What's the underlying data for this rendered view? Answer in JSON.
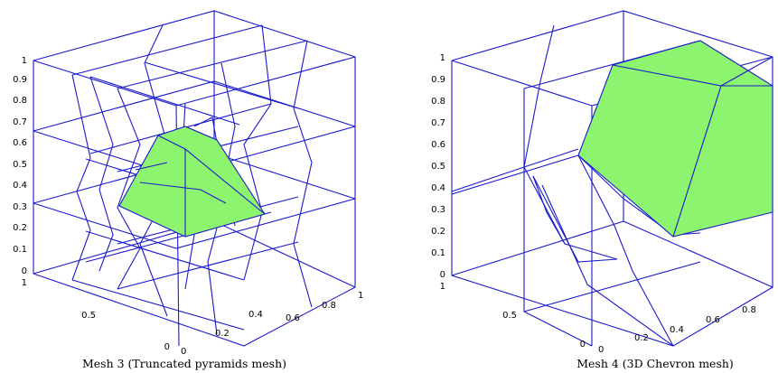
{
  "figures": [
    {
      "caption": "Mesh 3 (Truncated pyramids mesh)",
      "z_ticks": [
        "0",
        "0.1",
        "0.2",
        "0.3",
        "0.4",
        "0.5",
        "0.6",
        "0.7",
        "0.8",
        "0.9",
        "1"
      ],
      "y_ticks": [
        "0",
        "0.5",
        "1"
      ],
      "x_ticks": [
        "0",
        "0.2",
        "0.4",
        "0.6",
        "0.8",
        "1"
      ],
      "face_color": "#8cf46e",
      "edge_color": "#1a1acc"
    },
    {
      "caption": "Mesh 4 (3D Chevron mesh)",
      "z_ticks": [
        "0",
        "0.1",
        "0.2",
        "0.3",
        "0.4",
        "0.5",
        "0.6",
        "0.7",
        "0.8",
        "0.9",
        "1"
      ],
      "y_ticks": [
        "0",
        "0.5",
        "1"
      ],
      "x_ticks": [
        "0",
        "0.2",
        "0.4",
        "0.6",
        "0.8"
      ],
      "face_color": "#8cf46e",
      "edge_color": "#1a1acc"
    }
  ]
}
